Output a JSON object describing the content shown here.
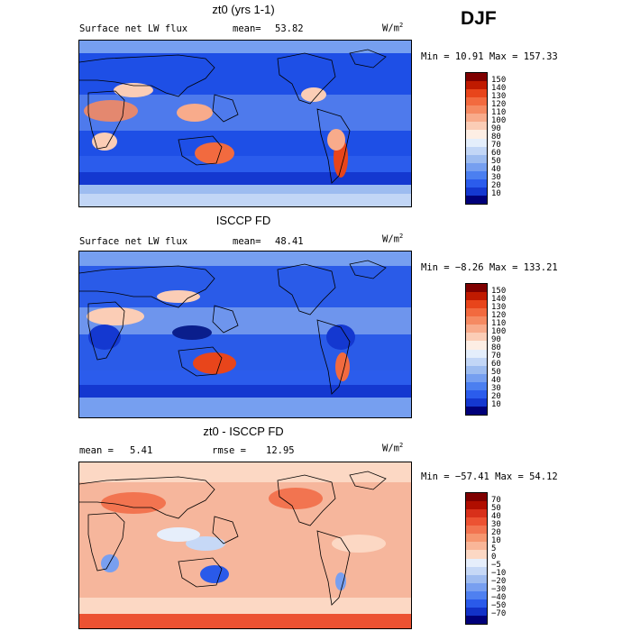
{
  "season": "DJF",
  "units_base": "W/m",
  "units_exp": "2",
  "panels": [
    {
      "id": "model",
      "title": "zt0 (yrs 1-1)",
      "left_label": "Surface net LW flux",
      "stat_label": "mean=",
      "stat_value": "53.82",
      "minmax": "Min =  10.91 Max = 157.33",
      "levels": [
        "150",
        "140",
        "130",
        "120",
        "110",
        "100",
        "90",
        "80",
        "70",
        "60",
        "50",
        "40",
        "30",
        "20",
        "10"
      ],
      "colors": [
        "#7f0000",
        "#c01a00",
        "#e8451b",
        "#f26a3f",
        "#f58a62",
        "#f8ab8b",
        "#fbcdb6",
        "#fdeee4",
        "#e4eefb",
        "#c2d6f6",
        "#9dbcf0",
        "#769ff0",
        "#4b7ff0",
        "#2b5cec",
        "#1438d0",
        "#00007a"
      ],
      "background": "#1e4fe6"
    },
    {
      "id": "obs",
      "title": "ISCCP FD",
      "left_label": "Surface net LW flux",
      "stat_label": "mean=",
      "stat_value": "48.41",
      "minmax": "Min =  −8.26 Max = 133.21",
      "levels": [
        "150",
        "140",
        "130",
        "120",
        "110",
        "100",
        "90",
        "80",
        "70",
        "60",
        "50",
        "40",
        "30",
        "20",
        "10"
      ],
      "colors": [
        "#7f0000",
        "#c01a00",
        "#e8451b",
        "#f26a3f",
        "#f58a62",
        "#f8ab8b",
        "#fbcdb6",
        "#fdeee4",
        "#e4eefb",
        "#c2d6f6",
        "#9dbcf0",
        "#769ff0",
        "#4b7ff0",
        "#2b5cec",
        "#1438d0",
        "#00007a"
      ],
      "background": "#2a5be8"
    },
    {
      "id": "diff",
      "title": "zt0 - ISCCP FD",
      "left_label": "mean =",
      "left_value": "5.41",
      "stat_label": "rmse =",
      "stat_value": "12.95",
      "minmax": "Min = −57.41 Max =  54.12",
      "levels": [
        "70",
        "50",
        "40",
        "30",
        "20",
        "10",
        "5",
        "0",
        "−5",
        "−10",
        "−20",
        "−30",
        "−40",
        "−50",
        "−70"
      ],
      "colors": [
        "#7f0000",
        "#b00e00",
        "#d8301a",
        "#ec5232",
        "#f27450",
        "#f6966f",
        "#f9b698",
        "#fcd8c4",
        "#e6eefb",
        "#c6d8f6",
        "#9fbcf0",
        "#789ff0",
        "#4f80f0",
        "#2a5aea",
        "#1232c8",
        "#00007a"
      ],
      "background": "#f6b69c"
    }
  ]
}
